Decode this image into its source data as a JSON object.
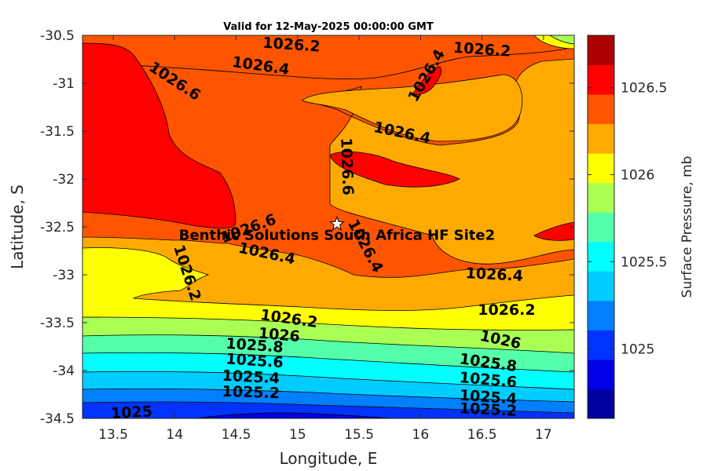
{
  "chart_data": {
    "type": "contour",
    "title": "Valid for 12-May-2025 00:00:00 GMT",
    "xlabel": "Longitude, E",
    "ylabel": "Latitude, S",
    "xlim": [
      13.25,
      17.25
    ],
    "ylim": [
      -34.5,
      -30.5
    ],
    "xticks": [
      "13.5",
      "14",
      "14.5",
      "15",
      "15.5",
      "16",
      "16.5",
      "17"
    ],
    "xtick_values": [
      13.5,
      14,
      14.5,
      15,
      15.5,
      16,
      16.5,
      17
    ],
    "yticks": [
      "-30.5",
      "-31",
      "-31.5",
      "-32",
      "-32.5",
      "-33",
      "-33.5",
      "-34",
      "-34.5"
    ],
    "ytick_values": [
      -30.5,
      -31,
      -31.5,
      -32,
      -32.5,
      -33,
      -33.5,
      -34,
      -34.5
    ],
    "colorbar": {
      "label": "Surface Pressure, mb",
      "min": 1024.6,
      "max": 1026.8,
      "tick_labels": [
        "1025",
        "1025.5",
        "1026",
        "1026.5"
      ],
      "tick_values": [
        1025,
        1025.5,
        1026,
        1026.5
      ],
      "colors": [
        "#00009c",
        "#0000e6",
        "#0033ff",
        "#0080ff",
        "#00ccff",
        "#00ffff",
        "#55ffaa",
        "#aaff55",
        "#ffff00",
        "#ffaa00",
        "#ff5500",
        "#ff0000",
        "#aa0000"
      ]
    },
    "contour_labels": [
      {
        "text": "1026.2",
        "lon": 14.95,
        "lat": -30.6,
        "angle": 4
      },
      {
        "text": "1026.4",
        "lon": 14.7,
        "lat": -30.82,
        "angle": 8
      },
      {
        "text": "1026.6",
        "lon": 14.0,
        "lat": -30.98,
        "angle": 33
      },
      {
        "text": "1026.4",
        "lon": 16.05,
        "lat": -30.92,
        "angle": -60
      },
      {
        "text": "1026.2",
        "lon": 16.5,
        "lat": -30.65,
        "angle": 4
      },
      {
        "text": "1026.4",
        "lon": 15.85,
        "lat": -31.52,
        "angle": 12
      },
      {
        "text": "1026.6",
        "lon": 15.4,
        "lat": -31.87,
        "angle": 88
      },
      {
        "text": "1026.6",
        "lon": 14.6,
        "lat": -32.52,
        "angle": -20
      },
      {
        "text": "1026.4",
        "lon": 14.75,
        "lat": -32.78,
        "angle": 12
      },
      {
        "text": "1026.4",
        "lon": 15.55,
        "lat": -32.7,
        "angle": 62
      },
      {
        "text": "1026.2",
        "lon": 14.1,
        "lat": -32.98,
        "angle": 72
      },
      {
        "text": "1026.4",
        "lon": 16.6,
        "lat": -33.0,
        "angle": 3
      },
      {
        "text": "1026.2",
        "lon": 16.7,
        "lat": -33.37,
        "angle": 0
      },
      {
        "text": "1026.2",
        "lon": 14.93,
        "lat": -33.46,
        "angle": 8
      },
      {
        "text": "1026",
        "lon": 14.85,
        "lat": -33.63,
        "angle": 5
      },
      {
        "text": "1026",
        "lon": 16.65,
        "lat": -33.68,
        "angle": 12
      },
      {
        "text": "1025.8",
        "lon": 14.65,
        "lat": -33.74,
        "angle": 4
      },
      {
        "text": "1025.8",
        "lon": 16.55,
        "lat": -33.92,
        "angle": 8
      },
      {
        "text": "1025.6",
        "lon": 14.65,
        "lat": -33.9,
        "angle": 4
      },
      {
        "text": "1025.6",
        "lon": 16.55,
        "lat": -34.1,
        "angle": 5
      },
      {
        "text": "1025.4",
        "lon": 14.62,
        "lat": -34.07,
        "angle": 3
      },
      {
        "text": "1025.4",
        "lon": 16.55,
        "lat": -34.28,
        "angle": 4
      },
      {
        "text": "1025.2",
        "lon": 14.62,
        "lat": -34.23,
        "angle": 2
      },
      {
        "text": "1025.2",
        "lon": 16.55,
        "lat": -34.41,
        "angle": 3
      },
      {
        "text": "1025",
        "lon": 13.65,
        "lat": -34.44,
        "angle": -3
      }
    ],
    "site": {
      "name": "Benthic Solutions South Africa HF Site2",
      "lon": 15.32,
      "lat": -32.47,
      "marker": "star"
    }
  }
}
